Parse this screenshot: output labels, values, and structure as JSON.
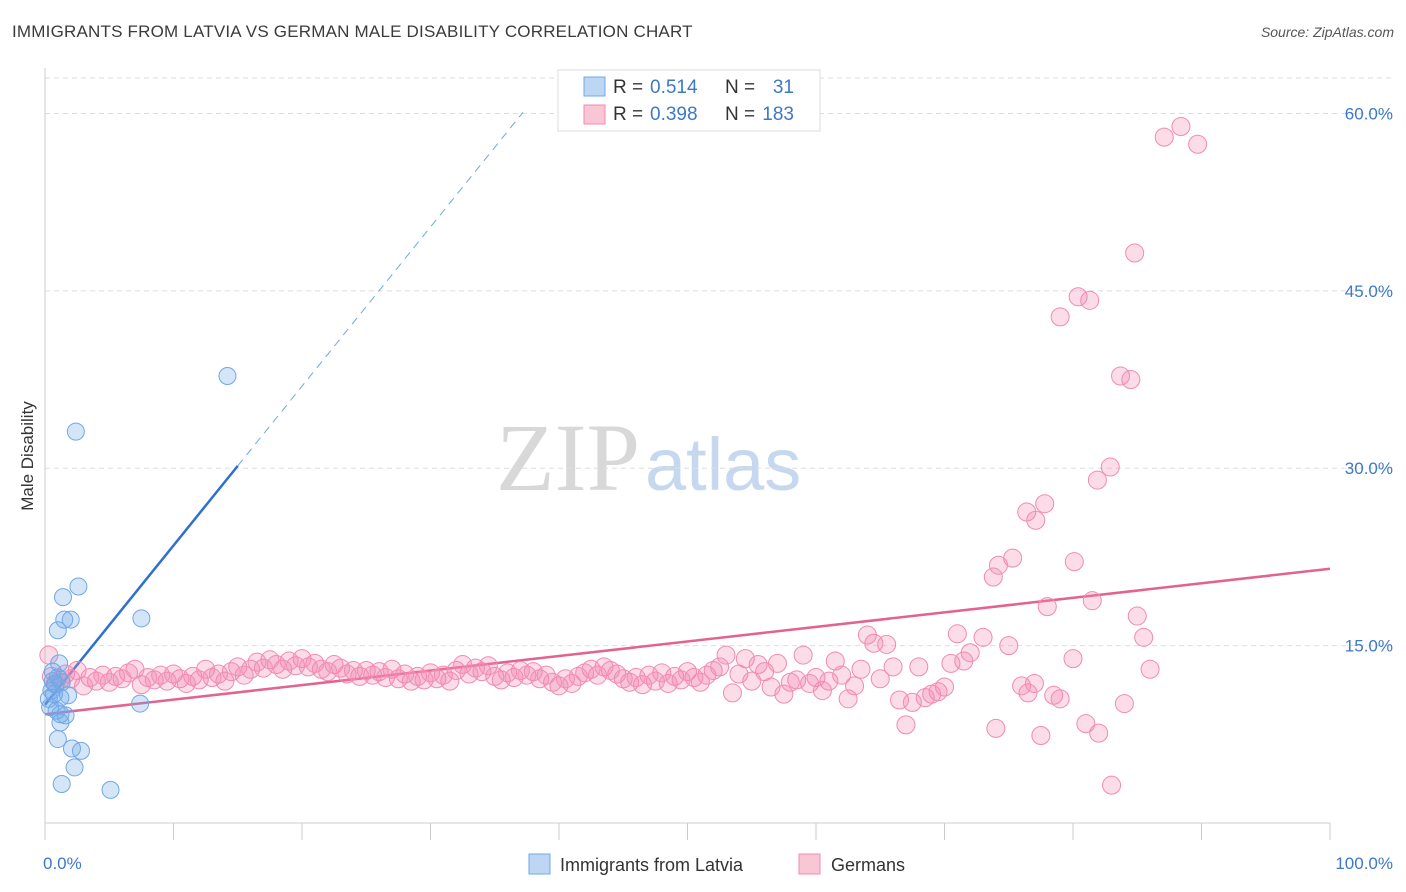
{
  "title": "IMMIGRANTS FROM LATVIA VS GERMAN MALE DISABILITY CORRELATION CHART",
  "source": "Source: ZipAtlas.com",
  "watermark": {
    "zip": "ZIP",
    "atlas": "atlas"
  },
  "colors": {
    "latvia": "#6fa8e8",
    "latvia_line": "#2f6fcf",
    "germans": "#f28bb0",
    "germans_line": "#e2638f",
    "axis_text": "#3d78c9",
    "grid": "#dddddd"
  },
  "legend": {
    "rows": [
      {
        "r_label": "R =",
        "r_value": "0.514",
        "n_label": "N =",
        "n_value": "31"
      },
      {
        "r_label": "R =",
        "r_value": "0.398",
        "n_label": "N =",
        "n_value": "183"
      }
    ]
  },
  "chart_data": {
    "type": "scatter",
    "title": "IMMIGRANTS FROM LATVIA VS GERMAN MALE DISABILITY CORRELATION CHART",
    "xlabel": "",
    "ylabel": "Male Disability",
    "xlim": [
      0,
      100
    ],
    "ylim": [
      0,
      63
    ],
    "x_tick_labels": [
      "0.0%",
      "100.0%"
    ],
    "y_ticks": [
      15,
      30,
      45,
      60
    ],
    "y_tick_labels": [
      "15.0%",
      "30.0%",
      "45.0%",
      "60.0%"
    ],
    "grid": true,
    "legend_position": "bottom",
    "series": [
      {
        "name": "Immigrants from Latvia",
        "r": 0.514,
        "n": 31,
        "trend": {
          "x0": 0,
          "y0": 10.0,
          "x1": 15,
          "y1": 30.2,
          "dash_x1": 37.2,
          "dash_y1": 60.1
        },
        "points": [
          [
            0.3,
            10.5
          ],
          [
            0.5,
            11.2
          ],
          [
            0.6,
            12.0
          ],
          [
            0.4,
            9.8
          ],
          [
            0.7,
            10.9
          ],
          [
            0.8,
            11.7
          ],
          [
            1.0,
            12.3
          ],
          [
            1.2,
            10.6
          ],
          [
            0.9,
            9.5
          ],
          [
            1.3,
            11.9
          ],
          [
            1.1,
            13.5
          ],
          [
            1.0,
            16.3
          ],
          [
            1.5,
            17.2
          ],
          [
            1.4,
            19.1
          ],
          [
            2.0,
            17.2
          ],
          [
            2.6,
            20.0
          ],
          [
            1.8,
            10.8
          ],
          [
            1.6,
            9.1
          ],
          [
            1.2,
            8.5
          ],
          [
            1.0,
            7.1
          ],
          [
            2.1,
            6.3
          ],
          [
            2.8,
            6.1
          ],
          [
            2.3,
            4.7
          ],
          [
            1.3,
            3.3
          ],
          [
            5.1,
            2.8
          ],
          [
            2.4,
            33.1
          ],
          [
            14.2,
            37.8
          ],
          [
            7.5,
            17.3
          ],
          [
            7.4,
            10.1
          ],
          [
            0.6,
            12.8
          ],
          [
            1.2,
            9.2
          ]
        ]
      },
      {
        "name": "Germans",
        "r": 0.398,
        "n": 183,
        "trend": {
          "x0": 0,
          "y0": 9.2,
          "x1": 100,
          "y1": 21.5
        },
        "points": [
          [
            0.3,
            14.2
          ],
          [
            0.5,
            12.4
          ],
          [
            0.8,
            11.8
          ],
          [
            1.2,
            12.1
          ],
          [
            1.6,
            12.6
          ],
          [
            2.0,
            12.2
          ],
          [
            2.5,
            12.9
          ],
          [
            3.0,
            11.6
          ],
          [
            3.5,
            12.3
          ],
          [
            4.0,
            12.0
          ],
          [
            4.5,
            12.5
          ],
          [
            5.0,
            11.9
          ],
          [
            5.5,
            12.4
          ],
          [
            6.0,
            12.2
          ],
          [
            6.5,
            12.7
          ],
          [
            7.0,
            13.0
          ],
          [
            7.5,
            11.7
          ],
          [
            8.0,
            12.3
          ],
          [
            8.5,
            12.1
          ],
          [
            9.0,
            12.5
          ],
          [
            9.5,
            12.0
          ],
          [
            10.0,
            12.6
          ],
          [
            10.5,
            12.2
          ],
          [
            11.0,
            11.8
          ],
          [
            11.5,
            12.4
          ],
          [
            12.0,
            12.1
          ],
          [
            12.5,
            13.0
          ],
          [
            13.0,
            12.3
          ],
          [
            13.5,
            12.6
          ],
          [
            14.0,
            12.0
          ],
          [
            14.5,
            12.8
          ],
          [
            15.0,
            13.2
          ],
          [
            15.5,
            12.5
          ],
          [
            16.0,
            13.0
          ],
          [
            16.5,
            13.6
          ],
          [
            17.0,
            13.1
          ],
          [
            17.5,
            13.8
          ],
          [
            18.0,
            13.4
          ],
          [
            18.5,
            13.0
          ],
          [
            19.0,
            13.7
          ],
          [
            19.5,
            13.3
          ],
          [
            20.0,
            13.9
          ],
          [
            20.5,
            13.2
          ],
          [
            21.0,
            13.5
          ],
          [
            21.5,
            13.0
          ],
          [
            22.0,
            12.8
          ],
          [
            22.5,
            13.4
          ],
          [
            23.0,
            13.1
          ],
          [
            23.5,
            12.6
          ],
          [
            24.0,
            12.9
          ],
          [
            24.5,
            12.4
          ],
          [
            25.0,
            12.9
          ],
          [
            25.5,
            12.5
          ],
          [
            26.0,
            12.8
          ],
          [
            26.5,
            12.3
          ],
          [
            27.0,
            13.0
          ],
          [
            27.5,
            12.2
          ],
          [
            28.0,
            12.6
          ],
          [
            28.5,
            12.0
          ],
          [
            29.0,
            12.4
          ],
          [
            29.5,
            12.1
          ],
          [
            30.0,
            12.7
          ],
          [
            30.5,
            12.2
          ],
          [
            31.0,
            12.5
          ],
          [
            31.5,
            12.0
          ],
          [
            32.0,
            12.9
          ],
          [
            32.5,
            13.4
          ],
          [
            33.0,
            12.6
          ],
          [
            33.5,
            13.1
          ],
          [
            34.0,
            12.8
          ],
          [
            34.5,
            13.3
          ],
          [
            35.0,
            12.4
          ],
          [
            35.5,
            12.1
          ],
          [
            36.0,
            12.7
          ],
          [
            36.5,
            12.3
          ],
          [
            37.0,
            12.9
          ],
          [
            37.5,
            12.5
          ],
          [
            38.0,
            12.8
          ],
          [
            38.5,
            12.2
          ],
          [
            39.0,
            12.5
          ],
          [
            39.5,
            11.9
          ],
          [
            40.0,
            11.6
          ],
          [
            40.5,
            12.2
          ],
          [
            41.0,
            11.8
          ],
          [
            41.5,
            12.4
          ],
          [
            42.0,
            12.7
          ],
          [
            42.5,
            13.0
          ],
          [
            43.0,
            12.5
          ],
          [
            43.5,
            13.2
          ],
          [
            44.0,
            12.9
          ],
          [
            44.5,
            12.6
          ],
          [
            45.0,
            12.2
          ],
          [
            45.5,
            11.9
          ],
          [
            46.0,
            12.3
          ],
          [
            46.5,
            11.7
          ],
          [
            47.0,
            12.5
          ],
          [
            47.5,
            12.0
          ],
          [
            48.0,
            12.7
          ],
          [
            48.5,
            11.8
          ],
          [
            49.0,
            12.4
          ],
          [
            49.5,
            12.1
          ],
          [
            50.0,
            12.8
          ],
          [
            50.5,
            12.3
          ],
          [
            51.0,
            11.9
          ],
          [
            51.5,
            12.5
          ],
          [
            52.0,
            12.9
          ],
          [
            52.5,
            13.2
          ],
          [
            53.0,
            14.2
          ],
          [
            53.5,
            11.0
          ],
          [
            54.0,
            12.6
          ],
          [
            54.5,
            13.9
          ],
          [
            55.0,
            12.0
          ],
          [
            55.5,
            13.4
          ],
          [
            56.0,
            12.8
          ],
          [
            56.5,
            11.5
          ],
          [
            57.0,
            13.5
          ],
          [
            57.5,
            10.9
          ],
          [
            58.0,
            11.9
          ],
          [
            58.5,
            12.1
          ],
          [
            59.0,
            14.2
          ],
          [
            59.5,
            11.8
          ],
          [
            60.0,
            12.3
          ],
          [
            60.5,
            11.2
          ],
          [
            61.0,
            12.0
          ],
          [
            61.5,
            13.7
          ],
          [
            62.0,
            12.5
          ],
          [
            62.5,
            10.5
          ],
          [
            63.0,
            11.6
          ],
          [
            63.5,
            13.0
          ],
          [
            64.0,
            15.9
          ],
          [
            64.5,
            15.2
          ],
          [
            65.0,
            12.2
          ],
          [
            65.5,
            15.1
          ],
          [
            66.0,
            13.2
          ],
          [
            66.5,
            10.4
          ],
          [
            67.0,
            8.3
          ],
          [
            67.5,
            10.2
          ],
          [
            68.0,
            13.2
          ],
          [
            68.5,
            10.6
          ],
          [
            69.0,
            10.9
          ],
          [
            69.5,
            11.1
          ],
          [
            70.0,
            11.5
          ],
          [
            70.5,
            13.5
          ],
          [
            71.0,
            16.0
          ],
          [
            71.5,
            13.7
          ],
          [
            72.0,
            14.4
          ],
          [
            73.0,
            15.7
          ],
          [
            74.0,
            8.0
          ],
          [
            75.0,
            15.0
          ],
          [
            76.0,
            11.6
          ],
          [
            76.5,
            11.0
          ],
          [
            77.0,
            11.8
          ],
          [
            77.5,
            7.4
          ],
          [
            78.0,
            18.3
          ],
          [
            78.5,
            10.8
          ],
          [
            79.0,
            10.5
          ],
          [
            80.0,
            13.9
          ],
          [
            81.0,
            8.4
          ],
          [
            82.0,
            7.6
          ],
          [
            83.0,
            3.2
          ],
          [
            84.0,
            10.1
          ],
          [
            85.0,
            17.5
          ],
          [
            85.5,
            15.7
          ],
          [
            86.0,
            13.0
          ],
          [
            73.8,
            20.8
          ],
          [
            74.2,
            21.8
          ],
          [
            75.3,
            22.4
          ],
          [
            76.4,
            26.3
          ],
          [
            77.1,
            25.6
          ],
          [
            77.8,
            27.0
          ],
          [
            80.1,
            22.1
          ],
          [
            81.5,
            18.8
          ],
          [
            81.9,
            29.0
          ],
          [
            82.9,
            30.1
          ],
          [
            84.5,
            37.5
          ],
          [
            79.0,
            42.8
          ],
          [
            80.4,
            44.5
          ],
          [
            81.3,
            44.2
          ],
          [
            83.7,
            37.8
          ],
          [
            84.8,
            48.2
          ],
          [
            87.1,
            58.0
          ],
          [
            88.4,
            58.9
          ],
          [
            89.7,
            57.4
          ]
        ]
      }
    ]
  },
  "bottom_legend": {
    "items": [
      {
        "label": "Immigrants from Latvia"
      },
      {
        "label": "Germans"
      }
    ]
  }
}
